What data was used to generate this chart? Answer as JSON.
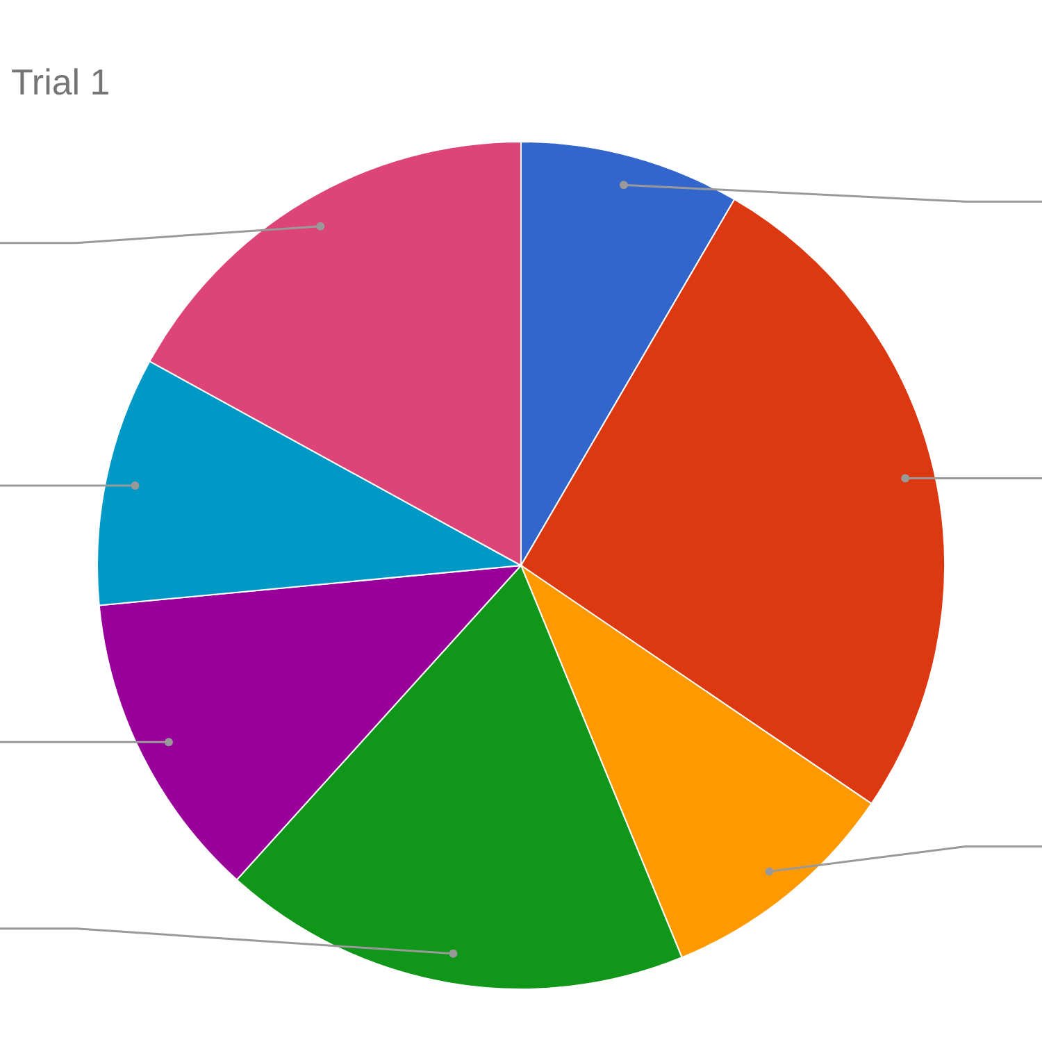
{
  "chart_data": {
    "type": "pie",
    "title": "Trial 1",
    "categories": [
      null,
      null,
      null,
      null,
      null,
      null,
      null
    ],
    "values": [
      8.4,
      26.1,
      9.3,
      17.9,
      11.8,
      9.5,
      17.0
    ],
    "colors": [
      "#3366cc",
      "#dc3912",
      "#ff9900",
      "#109618",
      "#990099",
      "#0099c6",
      "#dd4477"
    ]
  }
}
